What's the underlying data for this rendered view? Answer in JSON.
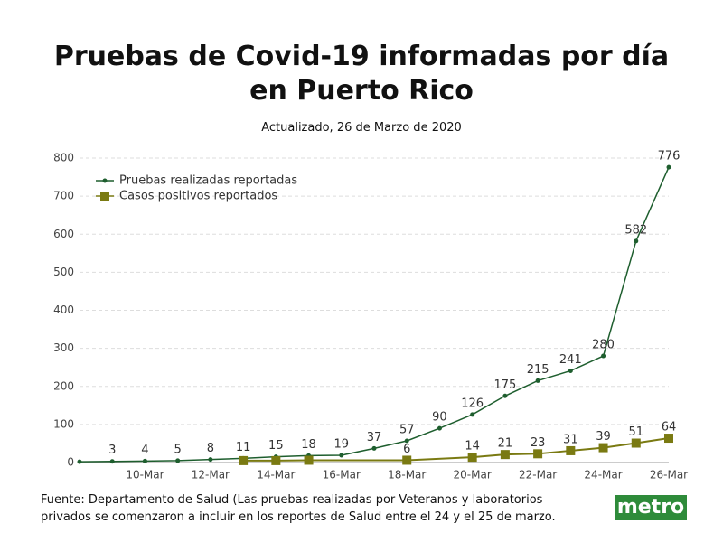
{
  "chart_data": {
    "type": "line",
    "title": "Pruebas de Covid-19  informadas por día en Puerto Rico",
    "subtitle": "Actualizado, 26 de Marzo de 2020",
    "note": "Fuente: Departamento de Salud (Las pruebas realizadas por Veteranos y laboratorios privados se comenzaron a incluir en los reportes de Salud entre el 24 y el 25 de marzo.",
    "logo": "metro",
    "categories": [
      null,
      null,
      "10-Mar",
      null,
      "12-Mar",
      null,
      "14-Mar",
      null,
      "16-Mar",
      null,
      "18-Mar",
      null,
      "20-Mar",
      null,
      "22-Mar",
      null,
      "24-Mar",
      null,
      "26-Mar"
    ],
    "series": [
      {
        "name": "Pruebas realizadas reportadas",
        "color": "#1e5e2e",
        "marker": "circle",
        "values": [
          2,
          3,
          4,
          5,
          8,
          11,
          15,
          18,
          19,
          37,
          57,
          90,
          126,
          175,
          215,
          241,
          280,
          582,
          776
        ],
        "value_labels": [
          null,
          "3",
          "4",
          "5",
          "8",
          "11",
          "15",
          "18",
          "19",
          "37",
          "57",
          "90",
          "126",
          "175",
          "215",
          "241",
          "280",
          "582",
          "776"
        ]
      },
      {
        "name": "Casos positivos reportados",
        "color": "#7a7a12",
        "marker": "square",
        "values": [
          null,
          null,
          null,
          null,
          null,
          5,
          5,
          6,
          null,
          null,
          6,
          null,
          14,
          21,
          23,
          31,
          39,
          51,
          64
        ],
        "value_labels": [
          null,
          null,
          null,
          null,
          null,
          null,
          null,
          null,
          null,
          null,
          "6",
          null,
          "14",
          "21",
          "23",
          "31",
          "39",
          "51",
          "64"
        ]
      }
    ],
    "connect_gaps": true,
    "ylim": [
      0,
      800
    ],
    "yticks": [
      0,
      100,
      200,
      300,
      400,
      500,
      600,
      700,
      800
    ],
    "grid": true,
    "legend": "top-left"
  }
}
